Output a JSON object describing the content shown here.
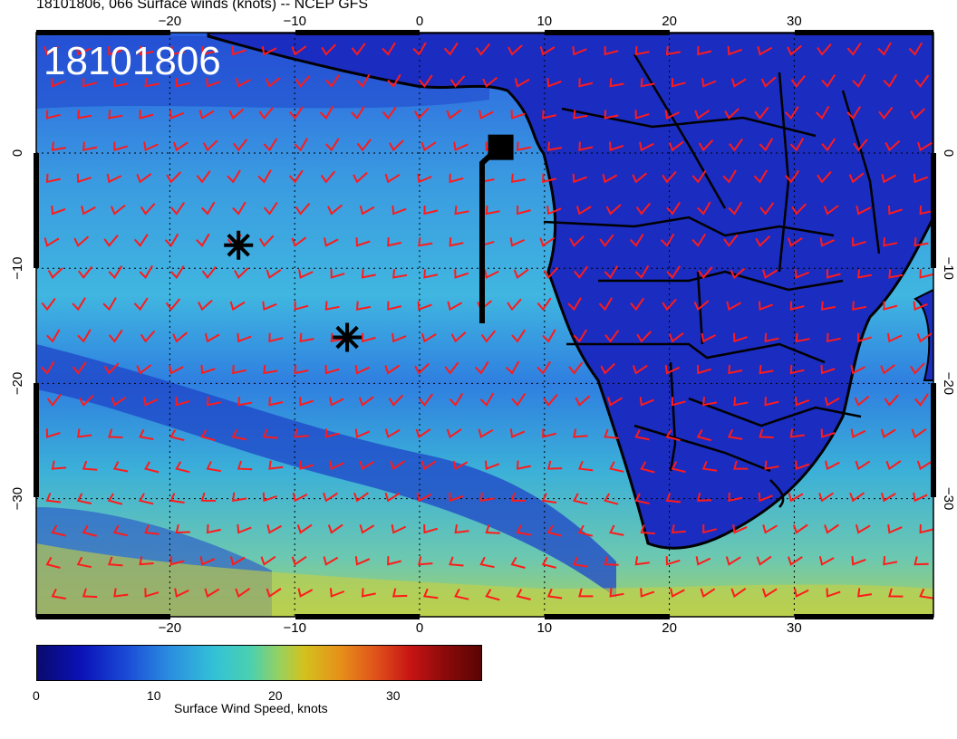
{
  "header": {
    "title": "18101806, 066 Surface winds (knots) -- NCEP GFS"
  },
  "map": {
    "timestamp_overlay": "18101806",
    "lon_labels": [
      "−20",
      "−10",
      "0",
      "10",
      "20",
      "30"
    ],
    "lat_labels": [
      "0",
      "−10",
      "−20",
      "−30"
    ],
    "lon_ticks": [
      -20,
      -10,
      0,
      10,
      20,
      30
    ],
    "lat_ticks": [
      0,
      -10,
      -20,
      -30
    ],
    "barb_color": "#ff1a1a",
    "markers": [
      {
        "type": "asterisk",
        "lon": -14.5,
        "lat": -8
      },
      {
        "type": "asterisk",
        "lon": -5.8,
        "lat": -16
      },
      {
        "type": "square",
        "lon": 6.5,
        "lat": 0.5
      }
    ]
  },
  "colorbar": {
    "ticks": [
      "0",
      "10",
      "20",
      "30"
    ],
    "label": "Surface Wind Speed, knots",
    "range": [
      0,
      38
    ]
  }
}
